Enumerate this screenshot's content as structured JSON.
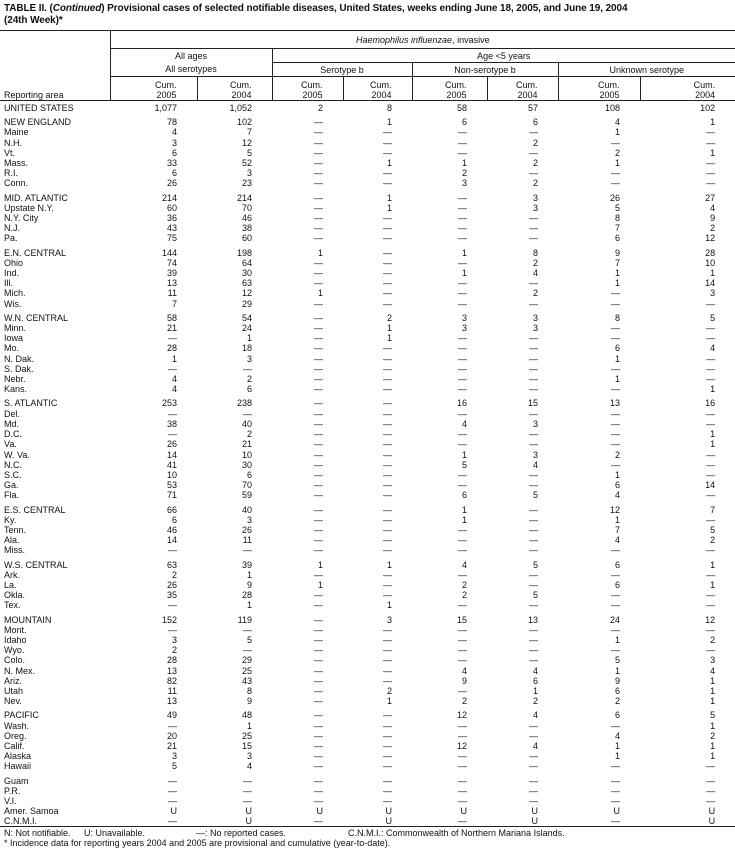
{
  "title": {
    "prefix": "TABLE II. (",
    "continued": "Continued",
    "rest": ") Provisional cases of selected notifiable diseases, United States, weeks ending June 18, 2005, and June 19, 2004",
    "line2": "(24th Week)*"
  },
  "header": {
    "disease_italic": "Haemophilus influenzae",
    "disease_rest": ", invasive",
    "all_ages": "All ages",
    "all_serotypes": "All serotypes",
    "age_lt5": "Age <5 years",
    "serotype_b": "Serotype b",
    "non_serotype_b": "Non-serotype b",
    "unknown_serotype": "Unknown serotype",
    "reporting_area": "Reporting area",
    "cum": "Cum.",
    "y2005": "2005",
    "y2004": "2004"
  },
  "groups": [
    [
      [
        "UNITED STATES",
        "1,077",
        "1,052",
        "2",
        "8",
        "58",
        "57",
        "108",
        "102"
      ]
    ],
    [
      [
        "NEW ENGLAND",
        "78",
        "102",
        "—",
        "1",
        "6",
        "6",
        "4",
        "1"
      ],
      [
        "Maine",
        "4",
        "7",
        "—",
        "—",
        "—",
        "—",
        "1",
        "—"
      ],
      [
        "N.H.",
        "3",
        "12",
        "—",
        "—",
        "—",
        "2",
        "—",
        "—"
      ],
      [
        "Vt.",
        "6",
        "5",
        "—",
        "—",
        "—",
        "—",
        "2",
        "1"
      ],
      [
        "Mass.",
        "33",
        "52",
        "—",
        "1",
        "1",
        "2",
        "1",
        "—"
      ],
      [
        "R.I.",
        "6",
        "3",
        "—",
        "—",
        "2",
        "—",
        "—",
        "—"
      ],
      [
        "Conn.",
        "26",
        "23",
        "—",
        "—",
        "3",
        "2",
        "—",
        "—"
      ]
    ],
    [
      [
        "MID. ATLANTIC",
        "214",
        "214",
        "—",
        "1",
        "—",
        "3",
        "26",
        "27"
      ],
      [
        "Upstate N.Y.",
        "60",
        "70",
        "—",
        "1",
        "—",
        "3",
        "5",
        "4"
      ],
      [
        "N.Y. City",
        "36",
        "46",
        "—",
        "—",
        "—",
        "—",
        "8",
        "9"
      ],
      [
        "N.J.",
        "43",
        "38",
        "—",
        "—",
        "—",
        "—",
        "7",
        "2"
      ],
      [
        "Pa.",
        "75",
        "60",
        "—",
        "—",
        "—",
        "—",
        "6",
        "12"
      ]
    ],
    [
      [
        "E.N. CENTRAL",
        "144",
        "198",
        "1",
        "—",
        "1",
        "8",
        "9",
        "28"
      ],
      [
        "Ohio",
        "74",
        "64",
        "—",
        "—",
        "—",
        "2",
        "7",
        "10"
      ],
      [
        "Ind.",
        "39",
        "30",
        "—",
        "—",
        "1",
        "4",
        "1",
        "1"
      ],
      [
        "Ill.",
        "13",
        "63",
        "—",
        "—",
        "—",
        "—",
        "1",
        "14"
      ],
      [
        "Mich.",
        "11",
        "12",
        "1",
        "—",
        "—",
        "2",
        "—",
        "3"
      ],
      [
        "Wis.",
        "7",
        "29",
        "—",
        "—",
        "—",
        "—",
        "—",
        "—"
      ]
    ],
    [
      [
        "W.N. CENTRAL",
        "58",
        "54",
        "—",
        "2",
        "3",
        "3",
        "8",
        "5"
      ],
      [
        "Minn.",
        "21",
        "24",
        "—",
        "1",
        "3",
        "3",
        "—",
        "—"
      ],
      [
        "Iowa",
        "—",
        "1",
        "—",
        "1",
        "—",
        "—",
        "—",
        "—"
      ],
      [
        "Mo.",
        "28",
        "18",
        "—",
        "—",
        "—",
        "—",
        "6",
        "4"
      ],
      [
        "N. Dak.",
        "1",
        "3",
        "—",
        "—",
        "—",
        "—",
        "1",
        "—"
      ],
      [
        "S. Dak.",
        "—",
        "—",
        "—",
        "—",
        "—",
        "—",
        "—",
        "—"
      ],
      [
        "Nebr.",
        "4",
        "2",
        "—",
        "—",
        "—",
        "—",
        "1",
        "—"
      ],
      [
        "Kans.",
        "4",
        "6",
        "—",
        "—",
        "—",
        "—",
        "—",
        "1"
      ]
    ],
    [
      [
        "S. ATLANTIC",
        "253",
        "238",
        "—",
        "—",
        "16",
        "15",
        "13",
        "16"
      ],
      [
        "Del.",
        "—",
        "—",
        "—",
        "—",
        "—",
        "—",
        "—",
        "—"
      ],
      [
        "Md.",
        "38",
        "40",
        "—",
        "—",
        "4",
        "3",
        "—",
        "—"
      ],
      [
        "D.C.",
        "—",
        "2",
        "—",
        "—",
        "—",
        "—",
        "—",
        "1"
      ],
      [
        "Va.",
        "26",
        "21",
        "—",
        "—",
        "—",
        "—",
        "—",
        "1"
      ],
      [
        "W. Va.",
        "14",
        "10",
        "—",
        "—",
        "1",
        "3",
        "2",
        "—"
      ],
      [
        "N.C.",
        "41",
        "30",
        "—",
        "—",
        "5",
        "4",
        "—",
        "—"
      ],
      [
        "S.C.",
        "10",
        "6",
        "—",
        "—",
        "—",
        "—",
        "1",
        "—"
      ],
      [
        "Ga.",
        "53",
        "70",
        "—",
        "—",
        "—",
        "—",
        "6",
        "14"
      ],
      [
        "Fla.",
        "71",
        "59",
        "—",
        "—",
        "6",
        "5",
        "4",
        "—"
      ]
    ],
    [
      [
        "E.S. CENTRAL",
        "66",
        "40",
        "—",
        "—",
        "1",
        "—",
        "12",
        "7"
      ],
      [
        "Ky.",
        "6",
        "3",
        "—",
        "—",
        "1",
        "—",
        "1",
        "—"
      ],
      [
        "Tenn.",
        "46",
        "26",
        "—",
        "—",
        "—",
        "—",
        "7",
        "5"
      ],
      [
        "Ala.",
        "14",
        "11",
        "—",
        "—",
        "—",
        "—",
        "4",
        "2"
      ],
      [
        "Miss.",
        "—",
        "—",
        "—",
        "—",
        "—",
        "—",
        "—",
        "—"
      ]
    ],
    [
      [
        "W.S. CENTRAL",
        "63",
        "39",
        "1",
        "1",
        "4",
        "5",
        "6",
        "1"
      ],
      [
        "Ark.",
        "2",
        "1",
        "—",
        "—",
        "—",
        "—",
        "—",
        "—"
      ],
      [
        "La.",
        "26",
        "9",
        "1",
        "—",
        "2",
        "—",
        "6",
        "1"
      ],
      [
        "Okla.",
        "35",
        "28",
        "—",
        "—",
        "2",
        "5",
        "—",
        "—"
      ],
      [
        "Tex.",
        "—",
        "1",
        "—",
        "1",
        "—",
        "—",
        "—",
        "—"
      ]
    ],
    [
      [
        "MOUNTAIN",
        "152",
        "119",
        "—",
        "3",
        "15",
        "13",
        "24",
        "12"
      ],
      [
        "Mont.",
        "—",
        "—",
        "—",
        "—",
        "—",
        "—",
        "—",
        "—"
      ],
      [
        "Idaho",
        "3",
        "5",
        "—",
        "—",
        "—",
        "—",
        "1",
        "2"
      ],
      [
        "Wyo.",
        "2",
        "—",
        "—",
        "—",
        "—",
        "—",
        "—",
        "—"
      ],
      [
        "Colo.",
        "28",
        "29",
        "—",
        "—",
        "—",
        "—",
        "5",
        "3"
      ],
      [
        "N. Mex.",
        "13",
        "25",
        "—",
        "—",
        "4",
        "4",
        "1",
        "4"
      ],
      [
        "Ariz.",
        "82",
        "43",
        "—",
        "—",
        "9",
        "6",
        "9",
        "1"
      ],
      [
        "Utah",
        "11",
        "8",
        "—",
        "2",
        "—",
        "1",
        "6",
        "1"
      ],
      [
        "Nev.",
        "13",
        "9",
        "—",
        "1",
        "2",
        "2",
        "2",
        "1"
      ]
    ],
    [
      [
        "PACIFIC",
        "49",
        "48",
        "—",
        "—",
        "12",
        "4",
        "6",
        "5"
      ],
      [
        "Wash.",
        "—",
        "1",
        "—",
        "—",
        "—",
        "—",
        "—",
        "1"
      ],
      [
        "Oreg.",
        "20",
        "25",
        "—",
        "—",
        "—",
        "—",
        "4",
        "2"
      ],
      [
        "Calif.",
        "21",
        "15",
        "—",
        "—",
        "12",
        "4",
        "1",
        "1"
      ],
      [
        "Alaska",
        "3",
        "3",
        "—",
        "—",
        "—",
        "—",
        "1",
        "1"
      ],
      [
        "Hawaii",
        "5",
        "4",
        "—",
        "—",
        "—",
        "—",
        "—",
        "—"
      ]
    ],
    [
      [
        "Guam",
        "—",
        "—",
        "—",
        "—",
        "—",
        "—",
        "—",
        "—"
      ],
      [
        "P.R.",
        "—",
        "—",
        "—",
        "—",
        "—",
        "—",
        "—",
        "—"
      ],
      [
        "V.I.",
        "—",
        "—",
        "—",
        "—",
        "—",
        "—",
        "—",
        "—"
      ],
      [
        "Amer. Samoa",
        "U",
        "U",
        "U",
        "U",
        "U",
        "U",
        "U",
        "U"
      ],
      [
        "C.N.M.I.",
        "—",
        "U",
        "—",
        "U",
        "—",
        "U",
        "—",
        "U"
      ]
    ]
  ],
  "footnotes": {
    "n": "N: Not notifiable.",
    "u": "U: Unavailable.",
    "dash": "—: No reported cases.",
    "cnmi": "C.N.M.I.: Commonwealth of Northern Mariana Islands.",
    "star": "* Incidence data for reporting years 2004 and 2005 are provisional and cumulative (year-to-date)."
  }
}
